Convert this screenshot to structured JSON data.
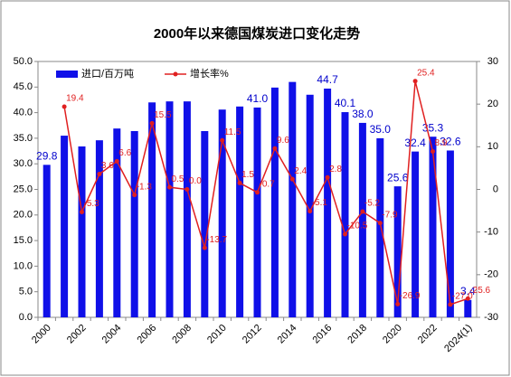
{
  "chart_data": {
    "type": "bar_line",
    "title": "2000年以来德国煤炭进口变化走势",
    "categories": [
      "2000",
      null,
      "2002",
      null,
      "2004",
      null,
      "2006",
      null,
      "2008",
      null,
      "2010",
      null,
      "2012",
      null,
      "2014",
      null,
      "2016",
      null,
      "2018",
      null,
      "2020",
      null,
      "2022",
      null,
      "2024(1)"
    ],
    "series": [
      {
        "name": "进口/百万吨",
        "color": "#1010e8",
        "axis": "y",
        "values": [
          29.8,
          35.5,
          33.4,
          34.6,
          36.9,
          36.4,
          42.0,
          42.2,
          42.2,
          36.4,
          40.6,
          41.2,
          41.0,
          44.9,
          46.0,
          43.5,
          44.7,
          40.1,
          38.0,
          35.0,
          25.6,
          32.4,
          35.3,
          32.6,
          3.4
        ],
        "value_labels": [
          "29.8",
          null,
          null,
          null,
          null,
          null,
          null,
          null,
          null,
          null,
          null,
          null,
          "41.0",
          null,
          null,
          null,
          "44.7",
          "40.1",
          "38.0",
          "35.0",
          "25.6",
          "32.4",
          "35.3",
          "32.6",
          "3.4"
        ]
      },
      {
        "name": "增长率%",
        "color": "#e02020",
        "axis": "y2",
        "values": [
          null,
          19.4,
          -5.3,
          3.6,
          6.6,
          -1.3,
          15.5,
          0.5,
          0.0,
          -13.7,
          11.5,
          1.5,
          -0.7,
          9.6,
          2.4,
          -5.1,
          2.8,
          -10.5,
          -5.2,
          -7.9,
          -26.9,
          25.4,
          8.9,
          -27.0,
          -25.6
        ],
        "value_labels": [
          null,
          "19.4",
          "-5.3",
          "3.6",
          "6.6",
          "-1.3",
          "15.5",
          "0.5",
          "0.0",
          "-13.7",
          "11.5",
          "1.5",
          "-0.7",
          "9.6",
          "2.4",
          "-5.1",
          "2.8",
          "-10.5",
          "-5.2",
          "-7.9",
          "-26.9",
          "25.4",
          "8.9",
          "-27.0",
          "-25.6"
        ]
      }
    ],
    "ylim": [
      0,
      50
    ],
    "yticks": [
      {
        "value": 0,
        "label": "0.0"
      },
      {
        "value": 5,
        "label": "5.0"
      },
      {
        "value": 10,
        "label": "10.0"
      },
      {
        "value": 15,
        "label": "15.0"
      },
      {
        "value": 20,
        "label": "20.0"
      },
      {
        "value": 25,
        "label": "25.0"
      },
      {
        "value": 30,
        "label": "30.0"
      },
      {
        "value": 35,
        "label": "35.0"
      },
      {
        "value": 40,
        "label": "40.0"
      },
      {
        "value": 45,
        "label": "45.0"
      },
      {
        "value": 50,
        "label": "50.0"
      }
    ],
    "y2lim": [
      -30,
      30
    ],
    "y2ticks": [
      -30,
      -20,
      -10,
      0,
      10,
      20,
      30
    ],
    "grid": false,
    "legend": "top-left"
  }
}
